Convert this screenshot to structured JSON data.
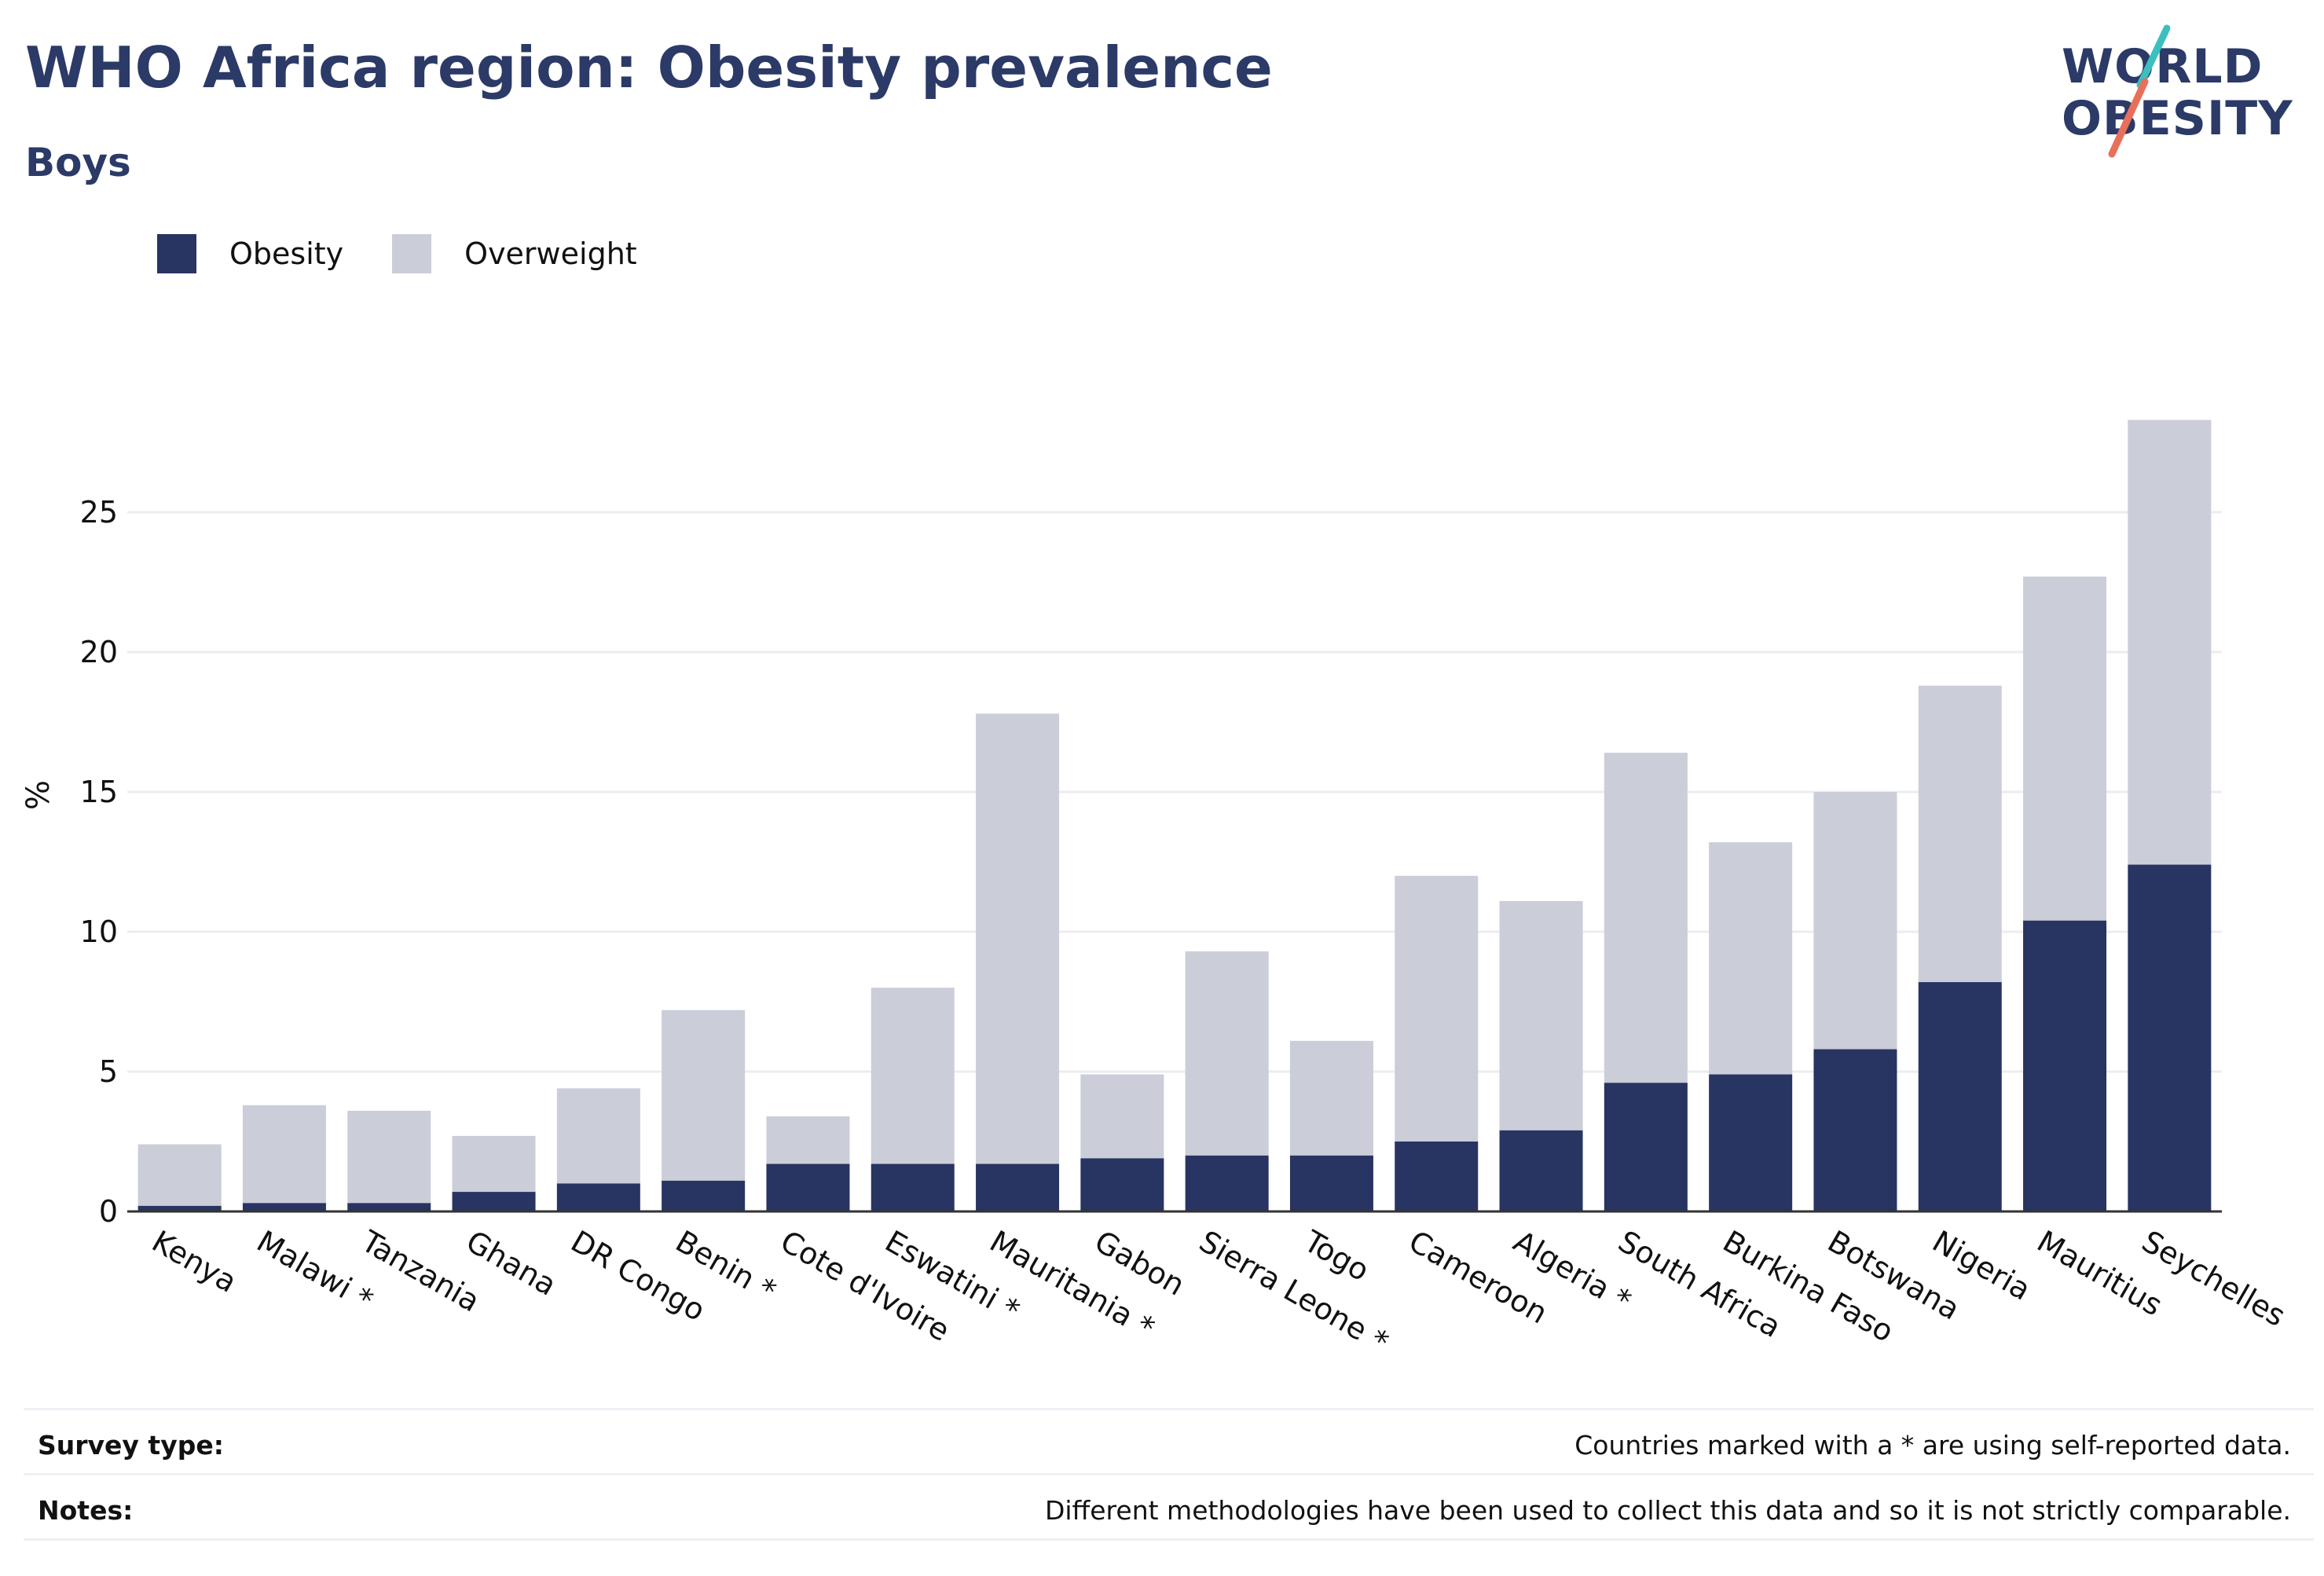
{
  "header": {
    "title": "WHO Africa region: Obesity prevalence",
    "subtitle": "Boys"
  },
  "logo": {
    "line1": "WORLD",
    "line2": "OBESITY",
    "slash_colors": [
      "#3bbfbf",
      "#e8705a"
    ]
  },
  "colors": {
    "obesity": "#283462",
    "overweight": "#cbcdd8",
    "text": "#111111",
    "title": "#2b3a67",
    "grid": "#ececf1",
    "axis": "#333333"
  },
  "chart_data": {
    "type": "bar",
    "stacked": true,
    "ylabel": "%",
    "xlabel": "",
    "ylim": [
      0,
      30
    ],
    "yticks": [
      0,
      5,
      10,
      15,
      20,
      25
    ],
    "grid": true,
    "legend_position": "top-left",
    "categories": [
      "Kenya",
      "Malawi *",
      "Tanzania",
      "Ghana",
      "DR Congo",
      "Benin *",
      "Cote d'Ivoire",
      "Eswatini *",
      "Mauritania *",
      "Gabon",
      "Sierra Leone *",
      "Togo",
      "Cameroon",
      "Algeria *",
      "South Africa",
      "Burkina Faso",
      "Botswana",
      "Nigeria",
      "Mauritius",
      "Seychelles"
    ],
    "series": [
      {
        "name": "Obesity",
        "values": [
          0.2,
          0.3,
          0.3,
          0.7,
          1.0,
          1.1,
          1.7,
          1.7,
          1.7,
          1.9,
          2.0,
          2.0,
          2.5,
          2.9,
          4.6,
          4.9,
          5.8,
          8.2,
          10.4,
          12.4
        ]
      },
      {
        "name": "Overweight",
        "values": [
          2.2,
          3.5,
          3.3,
          2.0,
          3.4,
          6.1,
          1.7,
          6.3,
          16.1,
          3.0,
          7.3,
          4.1,
          9.5,
          8.2,
          11.8,
          8.3,
          9.2,
          10.6,
          12.3,
          15.9
        ]
      }
    ]
  },
  "footer": {
    "survey_label": "Survey type:",
    "survey_text": "Countries marked with a * are using self-reported data.",
    "notes_label": "Notes:",
    "notes_text": "Different methodologies have been used to collect this data and so it is not strictly comparable."
  }
}
